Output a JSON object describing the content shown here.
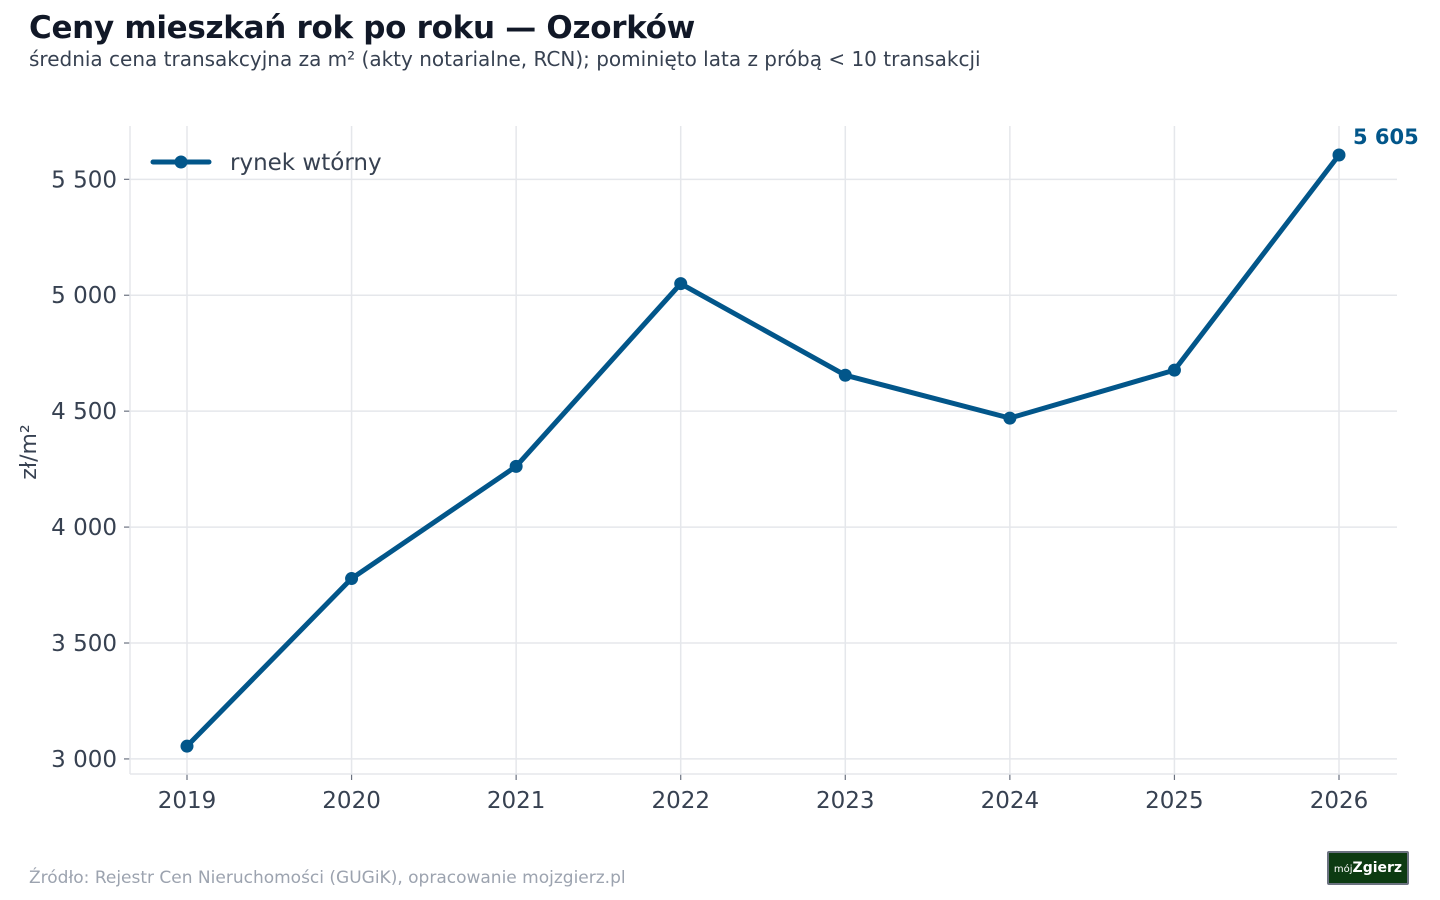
{
  "header": {
    "title": "Ceny mieszkań rok po roku — Ozorków",
    "subtitle": "średnia cena transakcyjna za m² (akty notarialne, RCN); pominięto lata z próbą < 10 transakcji"
  },
  "footer": {
    "source": "Źródło: Rejestr Cen Nieruchomości (GUGiK), opracowanie mojzgierz.pl",
    "logo_small": "mój",
    "logo_big": "Zgierz"
  },
  "chart_data": {
    "type": "line",
    "title": "Ceny mieszkań rok po roku — Ozorków",
    "subtitle": "średnia cena transakcyjna za m² (akty notarialne, RCN); pominięto lata z próbą < 10 transakcji",
    "xlabel": "",
    "ylabel": "zł/m²",
    "x": [
      2019,
      2020,
      2021,
      2022,
      2023,
      2024,
      2025,
      2026
    ],
    "series": [
      {
        "name": "rynek wtórny",
        "color": "#02568a",
        "values": [
          3055,
          3778,
          4262,
          5050,
          4655,
          4470,
          4677,
          5605
        ]
      }
    ],
    "ylim": [
      2935,
      5730
    ],
    "yticks": [
      3000,
      3500,
      4000,
      4500,
      5000,
      5500
    ],
    "ytick_labels": [
      "3 000",
      "3 500",
      "4 000",
      "4 500",
      "5 000",
      "5 500"
    ],
    "xticks": [
      "2019",
      "2020",
      "2021",
      "2022",
      "2023",
      "2024",
      "2025",
      "2026"
    ],
    "last_value_label": "5 605",
    "grid": true,
    "legend": "top-left"
  }
}
